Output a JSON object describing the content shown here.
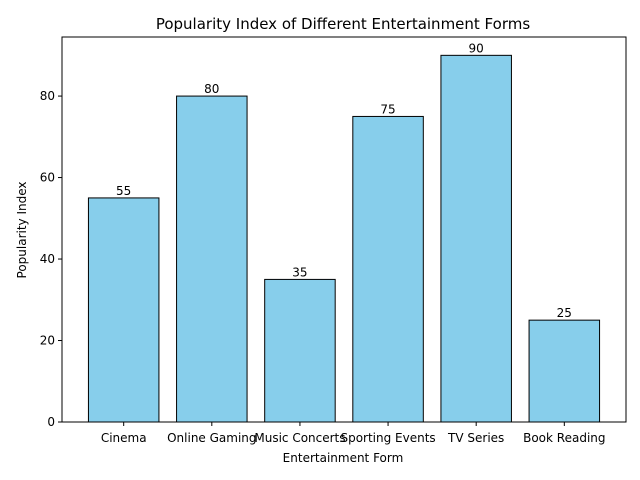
{
  "chart_data": {
    "type": "bar",
    "title": "Popularity Index of Different Entertainment Forms",
    "xlabel": "Entertainment Form",
    "ylabel": "Popularity Index",
    "categories": [
      "Cinema",
      "Online Gaming",
      "Music Concerts",
      "Sporting Events",
      "TV Series",
      "Book Reading"
    ],
    "values": [
      55,
      80,
      35,
      75,
      90,
      25
    ],
    "ylim": [
      0,
      94.5
    ],
    "yticks": [
      0,
      20,
      40,
      60,
      80
    ],
    "grid": false,
    "bar_color": "#87CEEB",
    "edge_color": "#000000"
  }
}
